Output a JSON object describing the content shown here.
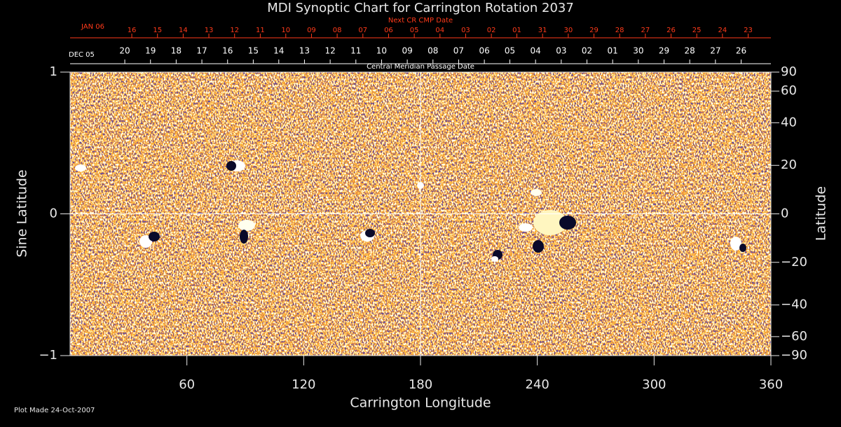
{
  "chart_data": {
    "type": "image",
    "title": "MDI Synoptic Chart for Carrington Rotation 2037",
    "xlabel": "Carrington Longitude",
    "ylabel": "Sine Latitude",
    "y2label": "Latitude",
    "note": "Plot Made 24-Oct-2007",
    "xlim": [
      0,
      360
    ],
    "xticks": [
      60,
      120,
      180,
      240,
      300,
      360
    ],
    "ylim": [
      -1,
      1
    ],
    "yticks": [
      {
        "value": -1,
        "label": "−1"
      },
      0,
      1
    ],
    "y2scale": "sine",
    "y2lim": [
      -90,
      90
    ],
    "y2ticks": [
      {
        "value": -90,
        "label": "−90"
      },
      {
        "value": -60,
        "label": "−60"
      },
      {
        "value": -40,
        "label": "−40"
      },
      {
        "value": -20,
        "label": "−20"
      },
      0,
      20,
      40,
      60,
      90
    ],
    "reference_lines": {
      "x": 180,
      "y": 0
    },
    "top_axis": {
      "label": "Central Meridian Passage Date",
      "start_label": "DEC 05",
      "color": "#ffffff",
      "ticks": [
        {
          "value": 28.1,
          "label": "20"
        },
        {
          "value": 41.3,
          "label": "19"
        },
        {
          "value": 54.5,
          "label": "18"
        },
        {
          "value": 67.7,
          "label": "17"
        },
        {
          "value": 80.9,
          "label": "16"
        },
        {
          "value": 94.1,
          "label": "15"
        },
        {
          "value": 107.2,
          "label": "14"
        },
        {
          "value": 120.4,
          "label": "13"
        },
        {
          "value": 133.6,
          "label": "12"
        },
        {
          "value": 146.8,
          "label": "11"
        },
        {
          "value": 160.0,
          "label": "10"
        },
        {
          "value": 173.2,
          "label": "09"
        },
        {
          "value": 186.4,
          "label": "08"
        },
        {
          "value": 199.6,
          "label": "07"
        },
        {
          "value": 212.8,
          "label": "06"
        },
        {
          "value": 225.9,
          "label": "05"
        },
        {
          "value": 239.1,
          "label": "04"
        },
        {
          "value": 252.3,
          "label": "03"
        },
        {
          "value": 265.5,
          "label": "02"
        },
        {
          "value": 278.7,
          "label": "01"
        },
        {
          "value": 291.9,
          "label": "30"
        },
        {
          "value": 305.1,
          "label": "29"
        },
        {
          "value": 318.3,
          "label": "28"
        },
        {
          "value": 331.5,
          "label": "27"
        },
        {
          "value": 344.7,
          "label": "26"
        }
      ]
    },
    "top_axis2": {
      "label": "Next CR CMP Date",
      "start_label": "JAN 06",
      "color": "#ff3a1a",
      "ticks": [
        {
          "value": 31.7,
          "label": "16"
        },
        {
          "value": 44.9,
          "label": "15"
        },
        {
          "value": 58.1,
          "label": "14"
        },
        {
          "value": 71.3,
          "label": "13"
        },
        {
          "value": 84.5,
          "label": "12"
        },
        {
          "value": 97.7,
          "label": "11"
        },
        {
          "value": 110.8,
          "label": "10"
        },
        {
          "value": 124.0,
          "label": "09"
        },
        {
          "value": 137.2,
          "label": "08"
        },
        {
          "value": 150.4,
          "label": "07"
        },
        {
          "value": 163.6,
          "label": "06"
        },
        {
          "value": 176.8,
          "label": "05"
        },
        {
          "value": 190.0,
          "label": "04"
        },
        {
          "value": 203.2,
          "label": "03"
        },
        {
          "value": 216.4,
          "label": "02"
        },
        {
          "value": 229.5,
          "label": "01"
        },
        {
          "value": 242.7,
          "label": "31"
        },
        {
          "value": 255.9,
          "label": "30"
        },
        {
          "value": 269.1,
          "label": "29"
        },
        {
          "value": 282.3,
          "label": "28"
        },
        {
          "value": 295.5,
          "label": "27"
        },
        {
          "value": 308.7,
          "label": "26"
        },
        {
          "value": 321.9,
          "label": "25"
        },
        {
          "value": 335.1,
          "label": "24"
        },
        {
          "value": 348.3,
          "label": "23"
        }
      ]
    }
  }
}
